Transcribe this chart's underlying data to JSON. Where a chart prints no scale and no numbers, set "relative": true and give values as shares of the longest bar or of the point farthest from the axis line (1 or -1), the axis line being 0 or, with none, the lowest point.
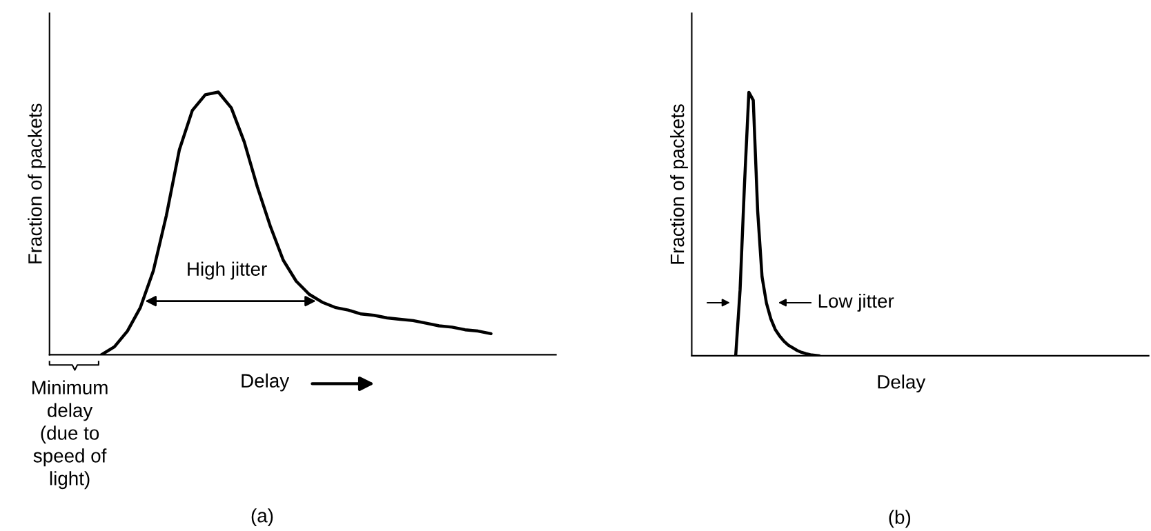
{
  "chart_data": [
    {
      "type": "line",
      "relative": true,
      "ylabel": "Fraction of packets",
      "xlabel": "Delay",
      "color": "#000000",
      "grid": false,
      "legend": false,
      "categories": [
        null,
        null,
        null,
        null,
        null,
        null,
        null,
        null,
        null,
        null,
        null,
        null,
        null,
        null,
        null,
        null,
        null,
        null,
        null,
        null,
        null,
        null,
        null,
        null,
        null,
        null,
        null,
        null,
        null,
        null,
        null,
        null,
        null,
        null,
        null,
        null,
        null,
        null,
        null,
        null
      ],
      "values": [
        null,
        null,
        null,
        null,
        0.0,
        0.03,
        0.09,
        0.18,
        0.32,
        0.53,
        0.78,
        0.93,
        0.99,
        1.0,
        0.94,
        0.81,
        0.64,
        0.49,
        0.36,
        0.28,
        0.23,
        0.2,
        0.18,
        0.17,
        0.155,
        0.15,
        0.14,
        0.135,
        0.13,
        0.12,
        0.11,
        0.105,
        0.095,
        0.09,
        0.08,
        null,
        null,
        null,
        null,
        null
      ],
      "annotations": [
        "High jitter",
        "Minimum\ndelay\n(due to\nspeed of\nlight)",
        "(a)"
      ]
    },
    {
      "type": "line",
      "relative": true,
      "ylabel": "Fraction of packets",
      "xlabel": "Delay",
      "color": "#000000",
      "grid": false,
      "legend": false,
      "categories": [
        null,
        null,
        null,
        null,
        null,
        null,
        null,
        null,
        null,
        null,
        null,
        null,
        null,
        null,
        null,
        null,
        null,
        null,
        null,
        null,
        null,
        null,
        null,
        null,
        null,
        null,
        null,
        null,
        null,
        null,
        null,
        null,
        null,
        null,
        null,
        null,
        null,
        null,
        null,
        null,
        null,
        null,
        null,
        null,
        null,
        null,
        null,
        null,
        null,
        null,
        null,
        null,
        null,
        null,
        null,
        null,
        null,
        null,
        null,
        null,
        null,
        null,
        null,
        null,
        null,
        null,
        null,
        null,
        null,
        null,
        null,
        null,
        null,
        null,
        null,
        null,
        null,
        null,
        null,
        null,
        null,
        null,
        null,
        null,
        null,
        null,
        null,
        null,
        null,
        null,
        null,
        null,
        null,
        null,
        null,
        null,
        null,
        null,
        null,
        null,
        null,
        null,
        null,
        null,
        null
      ],
      "values": [
        null,
        null,
        null,
        null,
        null,
        null,
        null,
        null,
        null,
        null,
        0.0,
        0.25,
        0.65,
        1.0,
        0.97,
        0.55,
        0.3,
        0.2,
        0.14,
        0.1,
        0.075,
        0.055,
        0.04,
        0.03,
        0.02,
        0.013,
        0.008,
        0.004,
        0.002,
        0.0,
        null,
        null,
        null,
        null,
        null,
        null,
        null,
        null,
        null,
        null,
        null,
        null,
        null,
        null,
        null,
        null,
        null,
        null,
        null,
        null,
        null,
        null,
        null,
        null,
        null,
        null,
        null,
        null,
        null,
        null,
        null,
        null,
        null,
        null,
        null,
        null,
        null,
        null,
        null,
        null,
        null,
        null,
        null,
        null,
        null,
        null,
        null,
        null,
        null,
        null,
        null,
        null,
        null,
        null,
        null,
        null,
        null,
        null,
        null,
        null,
        null,
        null,
        null,
        null,
        null,
        null,
        null,
        null,
        null,
        null,
        null,
        null,
        null,
        null,
        null
      ],
      "annotations": [
        "Low jitter",
        "(b)"
      ]
    }
  ]
}
